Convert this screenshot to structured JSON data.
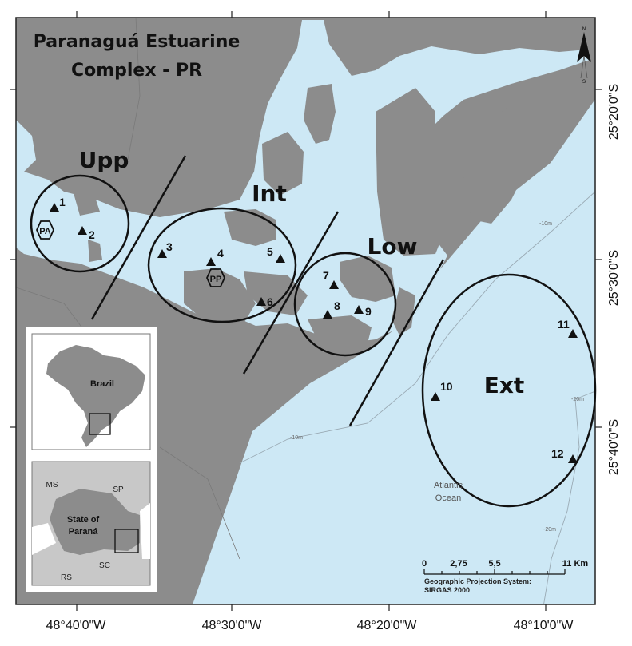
{
  "title_line1": "Paranaguá Estuarine",
  "title_line2": "Complex - PR",
  "colors": {
    "land": "#8c8c8c",
    "water": "#cde8f5",
    "inset_land": "#c8c8c8",
    "inset_state": "#8c8c8c"
  },
  "regions": [
    {
      "label": "Upp"
    },
    {
      "label": "Int"
    },
    {
      "label": "Low"
    },
    {
      "label": "Ext"
    }
  ],
  "sites": [
    "1",
    "2",
    "3",
    "4",
    "5",
    "6",
    "7",
    "8",
    "9",
    "10",
    "11",
    "12"
  ],
  "cities": [
    {
      "label": "PA",
      "icon": "hexagon-icon"
    },
    {
      "label": "PP",
      "icon": "hexagon-icon"
    }
  ],
  "x_axis": [
    "48°40'0\"W",
    "48°30'0\"W",
    "48°20'0\"W",
    "48°10'0\"W"
  ],
  "y_axis": [
    "25°20'0\"S",
    "25°30'0\"S",
    "25°40'0\"S"
  ],
  "depth_labels": [
    "-10m",
    "-10m",
    "-20m",
    "-20m"
  ],
  "ocean_label": [
    "Atlantic",
    "Ocean"
  ],
  "scale_bar": {
    "ticks": [
      "0",
      "2,75",
      "5,5",
      "11 Km"
    ],
    "projection_line1": "Geographic Projection System:",
    "projection_line2": "SIRGAS 2000"
  },
  "north_arrow": {
    "n": "N",
    "s": "S"
  },
  "inset": {
    "country": "Brazil",
    "state_line1": "State of",
    "state_line2": "Paraná",
    "neighbors": [
      "MS",
      "SP",
      "SC",
      "RS"
    ]
  }
}
